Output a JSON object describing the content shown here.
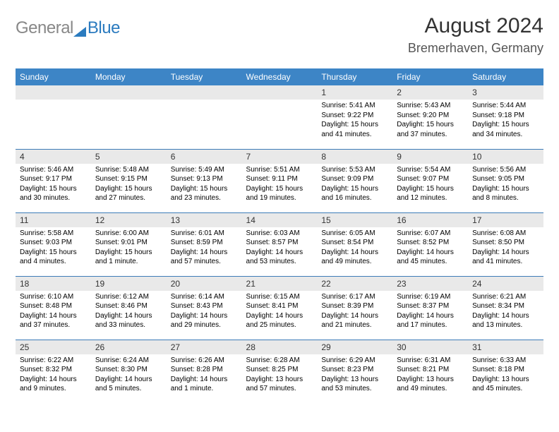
{
  "logo": {
    "text1": "General",
    "text2": "Blue"
  },
  "title": "August 2024",
  "location": "Bremerhaven, Germany",
  "dayHeaders": [
    "Sunday",
    "Monday",
    "Tuesday",
    "Wednesday",
    "Thursday",
    "Friday",
    "Saturday"
  ],
  "colors": {
    "header_bg": "#3d85c6",
    "header_text": "#ffffff",
    "row_border": "#3d7cb8",
    "daynum_bg": "#e9e9e9",
    "logo_gray": "#888888",
    "logo_blue": "#2b7bbf"
  },
  "typography": {
    "title_fontsize": 30,
    "location_fontsize": 18,
    "header_fontsize": 12,
    "daynum_fontsize": 12,
    "detail_fontsize": 10
  },
  "weeks": [
    [
      {
        "n": "",
        "sunrise": "",
        "sunset": "",
        "daylight": ""
      },
      {
        "n": "",
        "sunrise": "",
        "sunset": "",
        "daylight": ""
      },
      {
        "n": "",
        "sunrise": "",
        "sunset": "",
        "daylight": ""
      },
      {
        "n": "",
        "sunrise": "",
        "sunset": "",
        "daylight": ""
      },
      {
        "n": "1",
        "sunrise": "Sunrise: 5:41 AM",
        "sunset": "Sunset: 9:22 PM",
        "daylight": "Daylight: 15 hours and 41 minutes."
      },
      {
        "n": "2",
        "sunrise": "Sunrise: 5:43 AM",
        "sunset": "Sunset: 9:20 PM",
        "daylight": "Daylight: 15 hours and 37 minutes."
      },
      {
        "n": "3",
        "sunrise": "Sunrise: 5:44 AM",
        "sunset": "Sunset: 9:18 PM",
        "daylight": "Daylight: 15 hours and 34 minutes."
      }
    ],
    [
      {
        "n": "4",
        "sunrise": "Sunrise: 5:46 AM",
        "sunset": "Sunset: 9:17 PM",
        "daylight": "Daylight: 15 hours and 30 minutes."
      },
      {
        "n": "5",
        "sunrise": "Sunrise: 5:48 AM",
        "sunset": "Sunset: 9:15 PM",
        "daylight": "Daylight: 15 hours and 27 minutes."
      },
      {
        "n": "6",
        "sunrise": "Sunrise: 5:49 AM",
        "sunset": "Sunset: 9:13 PM",
        "daylight": "Daylight: 15 hours and 23 minutes."
      },
      {
        "n": "7",
        "sunrise": "Sunrise: 5:51 AM",
        "sunset": "Sunset: 9:11 PM",
        "daylight": "Daylight: 15 hours and 19 minutes."
      },
      {
        "n": "8",
        "sunrise": "Sunrise: 5:53 AM",
        "sunset": "Sunset: 9:09 PM",
        "daylight": "Daylight: 15 hours and 16 minutes."
      },
      {
        "n": "9",
        "sunrise": "Sunrise: 5:54 AM",
        "sunset": "Sunset: 9:07 PM",
        "daylight": "Daylight: 15 hours and 12 minutes."
      },
      {
        "n": "10",
        "sunrise": "Sunrise: 5:56 AM",
        "sunset": "Sunset: 9:05 PM",
        "daylight": "Daylight: 15 hours and 8 minutes."
      }
    ],
    [
      {
        "n": "11",
        "sunrise": "Sunrise: 5:58 AM",
        "sunset": "Sunset: 9:03 PM",
        "daylight": "Daylight: 15 hours and 4 minutes."
      },
      {
        "n": "12",
        "sunrise": "Sunrise: 6:00 AM",
        "sunset": "Sunset: 9:01 PM",
        "daylight": "Daylight: 15 hours and 1 minute."
      },
      {
        "n": "13",
        "sunrise": "Sunrise: 6:01 AM",
        "sunset": "Sunset: 8:59 PM",
        "daylight": "Daylight: 14 hours and 57 minutes."
      },
      {
        "n": "14",
        "sunrise": "Sunrise: 6:03 AM",
        "sunset": "Sunset: 8:57 PM",
        "daylight": "Daylight: 14 hours and 53 minutes."
      },
      {
        "n": "15",
        "sunrise": "Sunrise: 6:05 AM",
        "sunset": "Sunset: 8:54 PM",
        "daylight": "Daylight: 14 hours and 49 minutes."
      },
      {
        "n": "16",
        "sunrise": "Sunrise: 6:07 AM",
        "sunset": "Sunset: 8:52 PM",
        "daylight": "Daylight: 14 hours and 45 minutes."
      },
      {
        "n": "17",
        "sunrise": "Sunrise: 6:08 AM",
        "sunset": "Sunset: 8:50 PM",
        "daylight": "Daylight: 14 hours and 41 minutes."
      }
    ],
    [
      {
        "n": "18",
        "sunrise": "Sunrise: 6:10 AM",
        "sunset": "Sunset: 8:48 PM",
        "daylight": "Daylight: 14 hours and 37 minutes."
      },
      {
        "n": "19",
        "sunrise": "Sunrise: 6:12 AM",
        "sunset": "Sunset: 8:46 PM",
        "daylight": "Daylight: 14 hours and 33 minutes."
      },
      {
        "n": "20",
        "sunrise": "Sunrise: 6:14 AM",
        "sunset": "Sunset: 8:43 PM",
        "daylight": "Daylight: 14 hours and 29 minutes."
      },
      {
        "n": "21",
        "sunrise": "Sunrise: 6:15 AM",
        "sunset": "Sunset: 8:41 PM",
        "daylight": "Daylight: 14 hours and 25 minutes."
      },
      {
        "n": "22",
        "sunrise": "Sunrise: 6:17 AM",
        "sunset": "Sunset: 8:39 PM",
        "daylight": "Daylight: 14 hours and 21 minutes."
      },
      {
        "n": "23",
        "sunrise": "Sunrise: 6:19 AM",
        "sunset": "Sunset: 8:37 PM",
        "daylight": "Daylight: 14 hours and 17 minutes."
      },
      {
        "n": "24",
        "sunrise": "Sunrise: 6:21 AM",
        "sunset": "Sunset: 8:34 PM",
        "daylight": "Daylight: 14 hours and 13 minutes."
      }
    ],
    [
      {
        "n": "25",
        "sunrise": "Sunrise: 6:22 AM",
        "sunset": "Sunset: 8:32 PM",
        "daylight": "Daylight: 14 hours and 9 minutes."
      },
      {
        "n": "26",
        "sunrise": "Sunrise: 6:24 AM",
        "sunset": "Sunset: 8:30 PM",
        "daylight": "Daylight: 14 hours and 5 minutes."
      },
      {
        "n": "27",
        "sunrise": "Sunrise: 6:26 AM",
        "sunset": "Sunset: 8:28 PM",
        "daylight": "Daylight: 14 hours and 1 minute."
      },
      {
        "n": "28",
        "sunrise": "Sunrise: 6:28 AM",
        "sunset": "Sunset: 8:25 PM",
        "daylight": "Daylight: 13 hours and 57 minutes."
      },
      {
        "n": "29",
        "sunrise": "Sunrise: 6:29 AM",
        "sunset": "Sunset: 8:23 PM",
        "daylight": "Daylight: 13 hours and 53 minutes."
      },
      {
        "n": "30",
        "sunrise": "Sunrise: 6:31 AM",
        "sunset": "Sunset: 8:21 PM",
        "daylight": "Daylight: 13 hours and 49 minutes."
      },
      {
        "n": "31",
        "sunrise": "Sunrise: 6:33 AM",
        "sunset": "Sunset: 8:18 PM",
        "daylight": "Daylight: 13 hours and 45 minutes."
      }
    ]
  ]
}
